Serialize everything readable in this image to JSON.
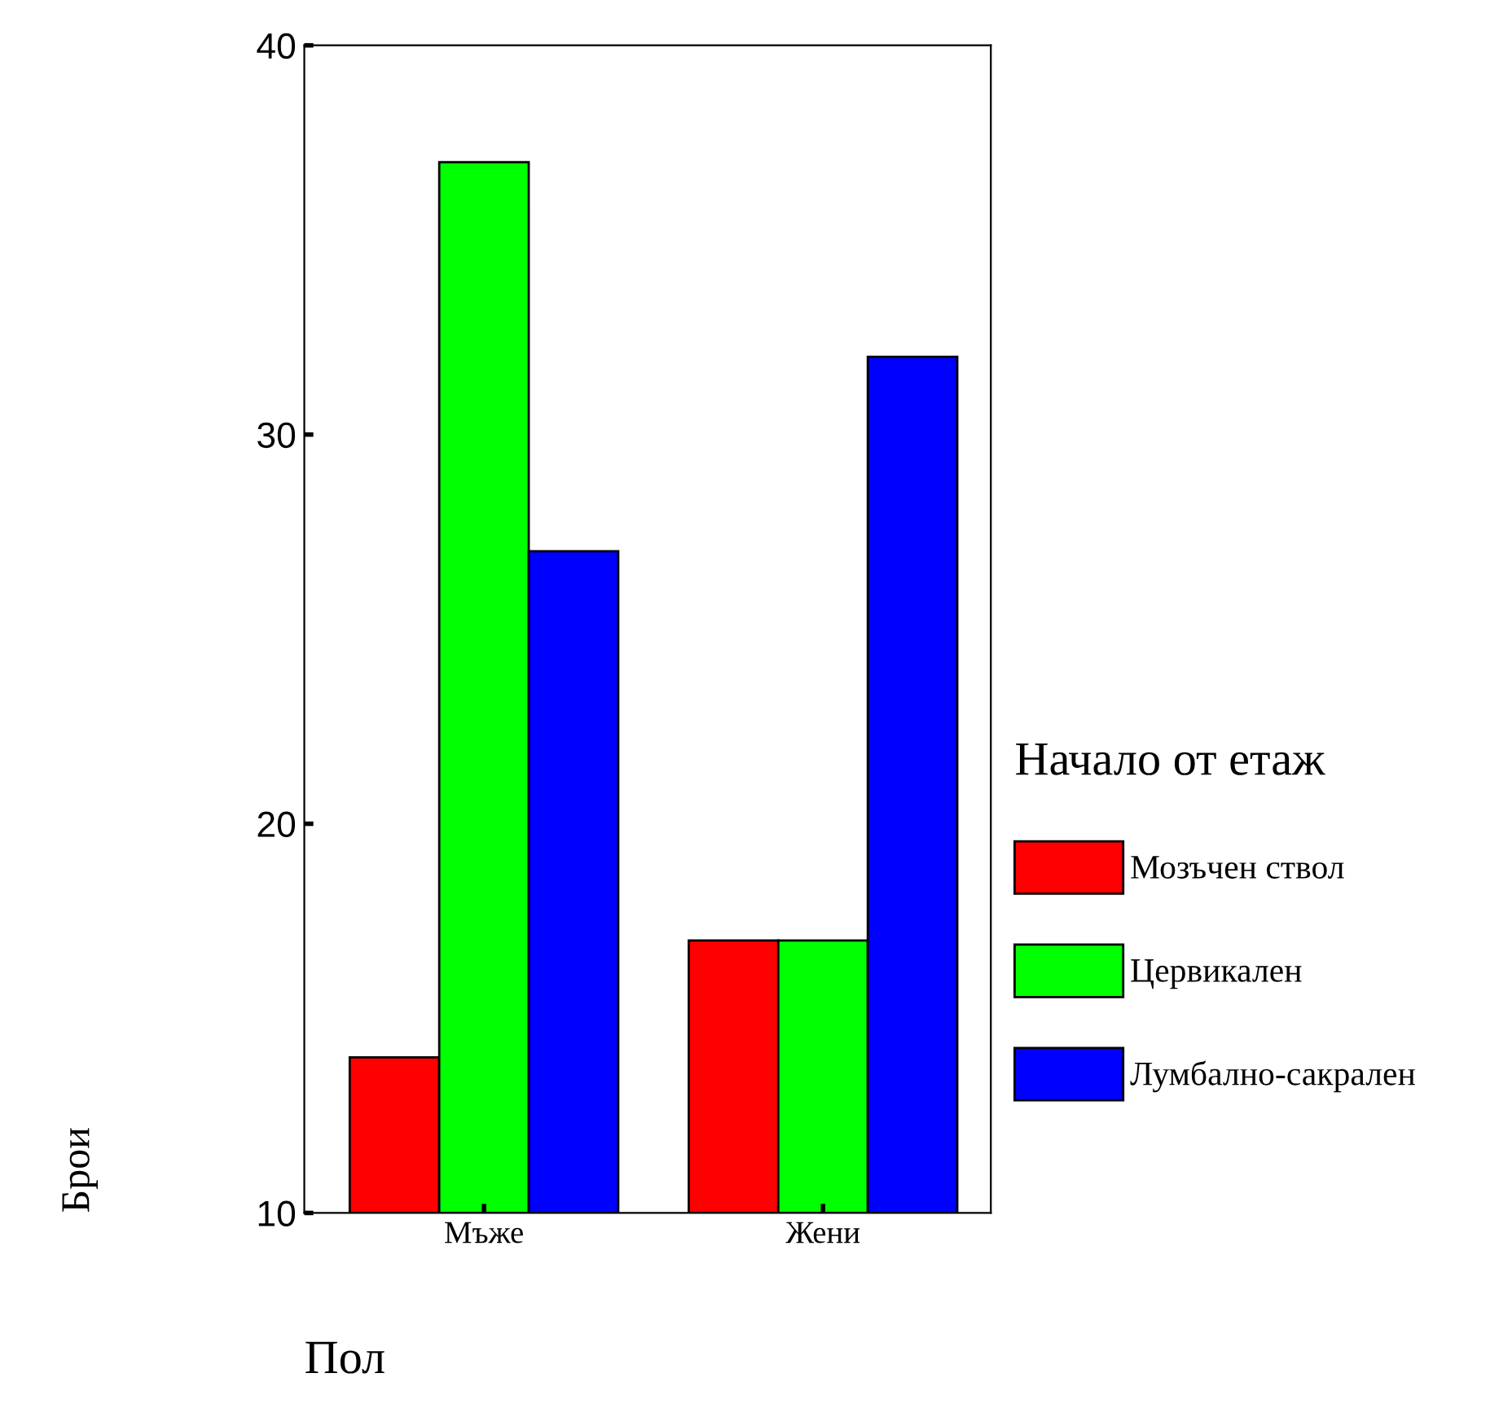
{
  "chart_data": {
    "type": "bar",
    "xlabel": "Пол",
    "ylabel": "Брои",
    "legend_title": "Начало от етаж",
    "categories": [
      "Мъже",
      "Жени"
    ],
    "series": [
      {
        "name": "Мозъчен ствол",
        "color": "#ff0000",
        "values": [
          14,
          17
        ]
      },
      {
        "name": "Цервикален",
        "color": "#00ff00",
        "values": [
          37,
          17
        ]
      },
      {
        "name": "Лумбално-сакрален",
        "color": "#0000ff",
        "values": [
          27,
          32
        ]
      }
    ],
    "ylim": [
      10,
      40
    ],
    "yticks": [
      10,
      20,
      30,
      40
    ],
    "grid": false,
    "legend": "right"
  }
}
